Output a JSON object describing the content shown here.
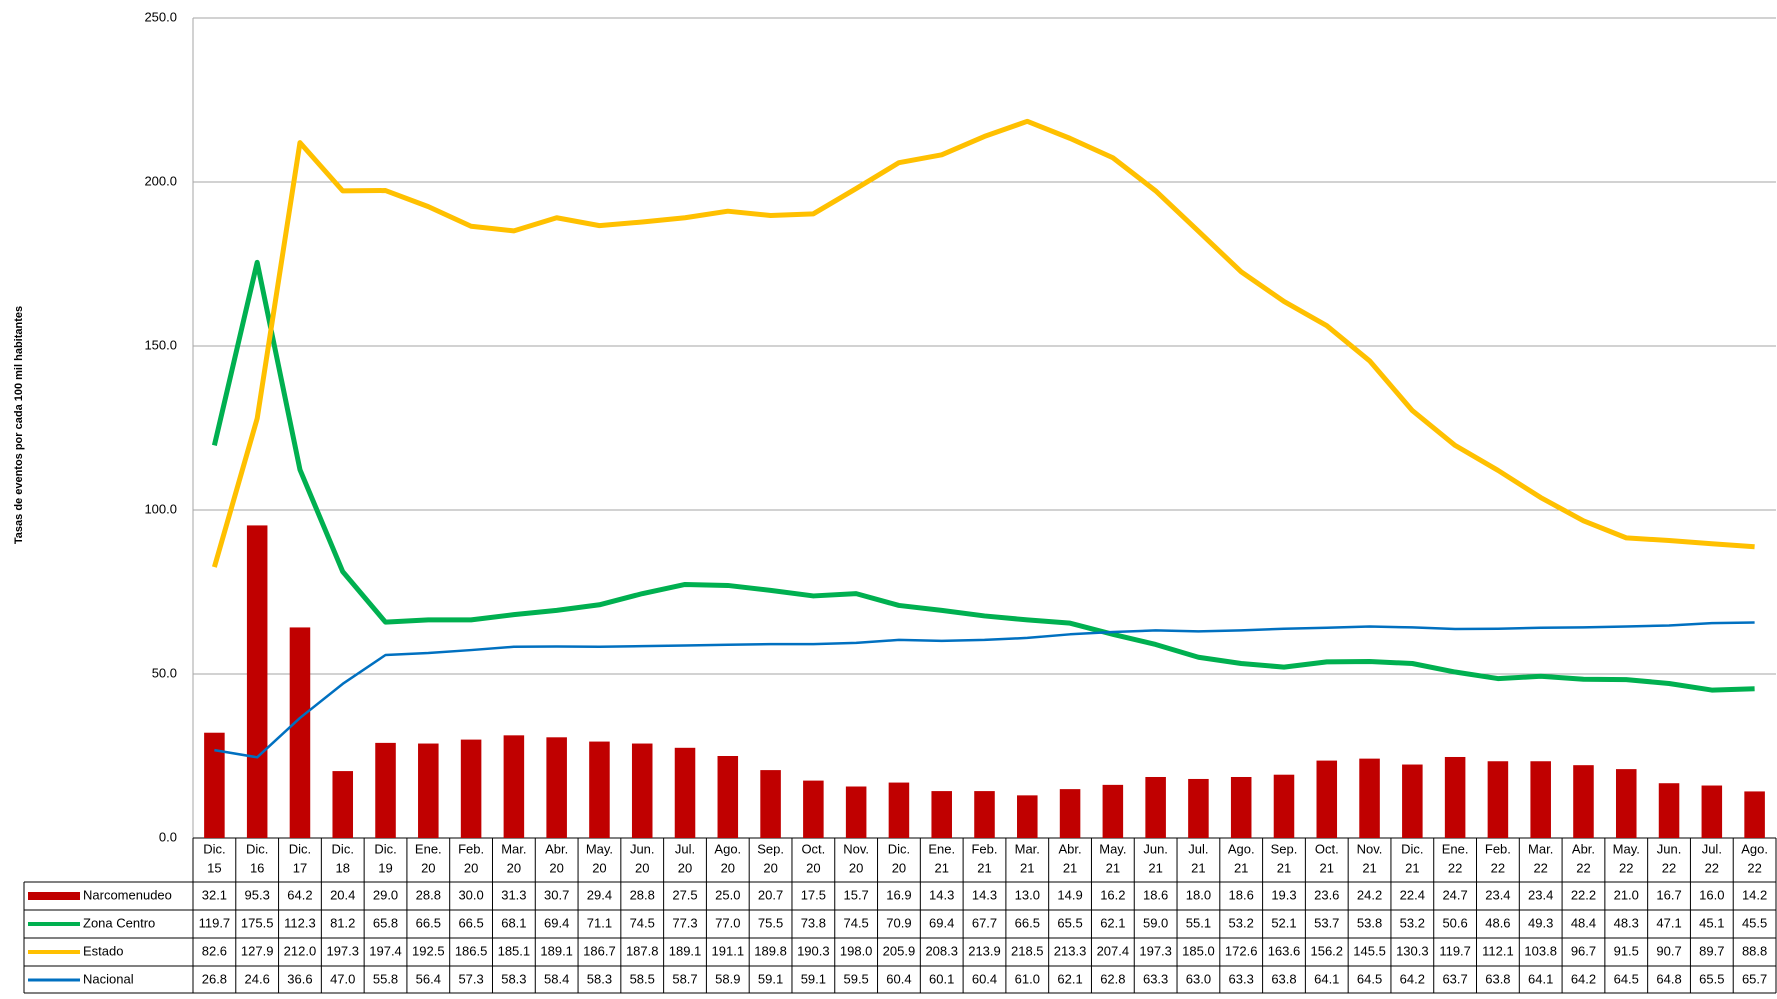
{
  "chart_data": {
    "type": "combo",
    "y_label": "Tasas de eventos por cada 100 mil habitantes",
    "ylim": [
      0,
      250
    ],
    "yticks": [
      {
        "value": 0,
        "label": "0.0"
      },
      {
        "value": 50,
        "label": "50.0"
      },
      {
        "value": 100,
        "label": "100.0"
      },
      {
        "value": 150,
        "label": "150.0"
      },
      {
        "value": 200,
        "label": "200.0"
      },
      {
        "value": 250,
        "label": "250.0"
      }
    ],
    "grid": true,
    "categories": [
      [
        "Dic.",
        "15"
      ],
      [
        "Dic.",
        "16"
      ],
      [
        "Dic.",
        "17"
      ],
      [
        "Dic.",
        "18"
      ],
      [
        "Dic.",
        "19"
      ],
      [
        "Ene.",
        "20"
      ],
      [
        "Feb.",
        "20"
      ],
      [
        "Mar.",
        "20"
      ],
      [
        "Abr.",
        "20"
      ],
      [
        "May.",
        "20"
      ],
      [
        "Jun.",
        "20"
      ],
      [
        "Jul.",
        "20"
      ],
      [
        "Ago.",
        "20"
      ],
      [
        "Sep.",
        "20"
      ],
      [
        "Oct.",
        "20"
      ],
      [
        "Nov.",
        "20"
      ],
      [
        "Dic.",
        "20"
      ],
      [
        "Ene.",
        "21"
      ],
      [
        "Feb.",
        "21"
      ],
      [
        "Mar.",
        "21"
      ],
      [
        "Abr.",
        "21"
      ],
      [
        "May.",
        "21"
      ],
      [
        "Jun.",
        "21"
      ],
      [
        "Jul.",
        "21"
      ],
      [
        "Ago.",
        "21"
      ],
      [
        "Sep.",
        "21"
      ],
      [
        "Oct.",
        "21"
      ],
      [
        "Nov.",
        "21"
      ],
      [
        "Dic.",
        "21"
      ],
      [
        "Ene.",
        "22"
      ],
      [
        "Feb.",
        "22"
      ],
      [
        "Mar.",
        "22"
      ],
      [
        "Abr.",
        "22"
      ],
      [
        "May.",
        "22"
      ],
      [
        "Jun.",
        "22"
      ],
      [
        "Jul.",
        "22"
      ],
      [
        "Ago.",
        "22"
      ]
    ],
    "series": [
      {
        "name": "Narcomenudeo",
        "type": "bar",
        "color": "#c00000",
        "values": [
          32.1,
          95.3,
          64.2,
          20.4,
          29.0,
          28.8,
          30.0,
          31.3,
          30.7,
          29.4,
          28.8,
          27.5,
          25.0,
          20.7,
          17.5,
          15.7,
          16.9,
          14.3,
          14.3,
          13.0,
          14.9,
          16.2,
          18.6,
          18.0,
          18.6,
          19.3,
          23.6,
          24.2,
          22.4,
          24.7,
          23.4,
          23.4,
          22.2,
          21.0,
          16.7,
          16.0,
          14.2
        ],
        "value_labels": [
          "32.1",
          "95.3",
          "64.2",
          "20.4",
          "29.0",
          "28.8",
          "30.0",
          "31.3",
          "30.7",
          "29.4",
          "28.8",
          "27.5",
          "25.0",
          "20.7",
          "17.5",
          "15.7",
          "16.9",
          "14.3",
          "14.3",
          "13.0",
          "14.9",
          "16.2",
          "18.6",
          "18.0",
          "18.6",
          "19.3",
          "23.6",
          "24.2",
          "22.4",
          "24.7",
          "23.4",
          "23.4",
          "22.2",
          "21.0",
          "16.7",
          "16.0",
          "14.2"
        ]
      },
      {
        "name": "Zona Centro",
        "type": "line",
        "color": "#00b050",
        "width": 5,
        "values": [
          119.7,
          175.5,
          112.3,
          81.2,
          65.8,
          66.5,
          66.5,
          68.1,
          69.4,
          71.1,
          74.5,
          77.3,
          77.0,
          75.5,
          73.8,
          74.5,
          70.9,
          69.4,
          67.7,
          66.5,
          65.5,
          62.1,
          59.0,
          55.1,
          53.2,
          52.1,
          53.7,
          53.8,
          53.2,
          50.6,
          48.6,
          49.3,
          48.4,
          48.3,
          47.1,
          45.1,
          45.5
        ],
        "value_labels": [
          "119.7",
          "175.5",
          "112.3",
          "81.2",
          "65.8",
          "66.5",
          "66.5",
          "68.1",
          "69.4",
          "71.1",
          "74.5",
          "77.3",
          "77.0",
          "75.5",
          "73.8",
          "74.5",
          "70.9",
          "69.4",
          "67.7",
          "66.5",
          "65.5",
          "62.1",
          "59.0",
          "55.1",
          "53.2",
          "52.1",
          "53.7",
          "53.8",
          "53.2",
          "50.6",
          "48.6",
          "49.3",
          "48.4",
          "48.3",
          "47.1",
          "45.1",
          "45.5"
        ]
      },
      {
        "name": "Estado",
        "type": "line",
        "color": "#ffc000",
        "width": 5,
        "values": [
          82.6,
          127.9,
          212.0,
          197.3,
          197.4,
          192.5,
          186.5,
          185.1,
          189.1,
          186.7,
          187.8,
          189.1,
          191.1,
          189.8,
          190.3,
          198.0,
          205.9,
          208.3,
          213.9,
          218.5,
          213.3,
          207.4,
          197.3,
          185.0,
          172.6,
          163.6,
          156.2,
          145.5,
          130.3,
          119.7,
          112.1,
          103.8,
          96.7,
          91.5,
          90.7,
          89.7,
          88.8
        ],
        "value_labels": [
          "82.6",
          "127.9",
          "212.0",
          "197.3",
          "197.4",
          "192.5",
          "186.5",
          "185.1",
          "189.1",
          "186.7",
          "187.8",
          "189.1",
          "191.1",
          "189.8",
          "190.3",
          "198.0",
          "205.9",
          "208.3",
          "213.9",
          "218.5",
          "213.3",
          "207.4",
          "197.3",
          "185.0",
          "172.6",
          "163.6",
          "156.2",
          "145.5",
          "130.3",
          "119.7",
          "112.1",
          "103.8",
          "96.7",
          "91.5",
          "90.7",
          "89.7",
          "88.8"
        ]
      },
      {
        "name": "Nacional",
        "type": "line",
        "color": "#0070c0",
        "width": 2.5,
        "values": [
          26.8,
          24.6,
          36.6,
          47.0,
          55.8,
          56.4,
          57.3,
          58.3,
          58.4,
          58.3,
          58.5,
          58.7,
          58.9,
          59.1,
          59.1,
          59.5,
          60.4,
          60.1,
          60.4,
          61.0,
          62.1,
          62.8,
          63.3,
          63.0,
          63.3,
          63.8,
          64.1,
          64.5,
          64.2,
          63.7,
          63.8,
          64.1,
          64.2,
          64.5,
          64.8,
          65.5,
          65.7
        ],
        "value_labels": [
          "26.8",
          "24.6",
          "36.6",
          "47.0",
          "55.8",
          "56.4",
          "57.3",
          "58.3",
          "58.4",
          "58.3",
          "58.5",
          "58.7",
          "58.9",
          "59.1",
          "59.1",
          "59.5",
          "60.4",
          "60.1",
          "60.4",
          "61.0",
          "62.1",
          "62.8",
          "63.3",
          "63.0",
          "63.3",
          "63.8",
          "64.1",
          "64.5",
          "64.2",
          "63.7",
          "63.8",
          "64.1",
          "64.2",
          "64.5",
          "64.8",
          "65.5",
          "65.7"
        ]
      }
    ]
  }
}
